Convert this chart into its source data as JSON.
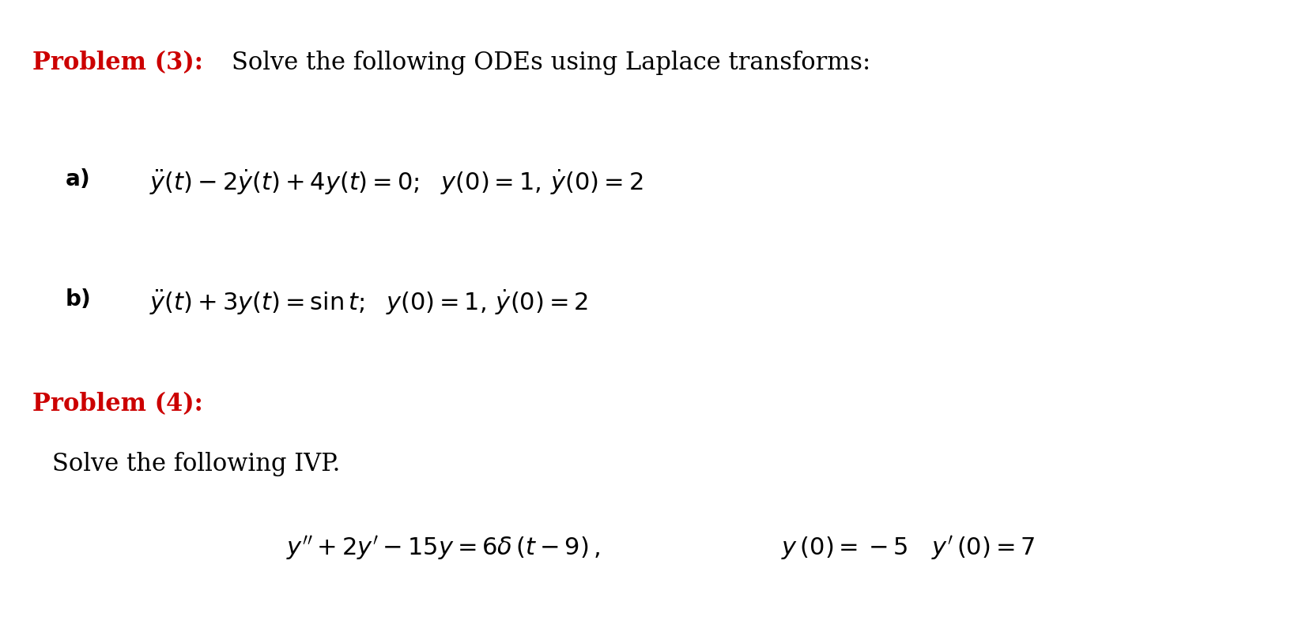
{
  "background_color": "#ffffff",
  "problem3_label_color": "#cc0000",
  "problem3_text": "Solve the following ODEs using Laplace transforms:",
  "problem3_text_color": "#000000",
  "problem4_label_color": "#cc0000",
  "solve_ivp_color": "#000000",
  "figsize": [
    16.47,
    8.0
  ],
  "dpi": 100,
  "fs_main": 22,
  "fs_label": 22,
  "fs_text": 22,
  "fs_ab": 20,
  "p3_label": "Problem (3):",
  "p4_label": "Problem (4):",
  "solve_ivp_text": "Solve the following IVP.",
  "part_a_label": "a)",
  "part_b_label": "b)"
}
